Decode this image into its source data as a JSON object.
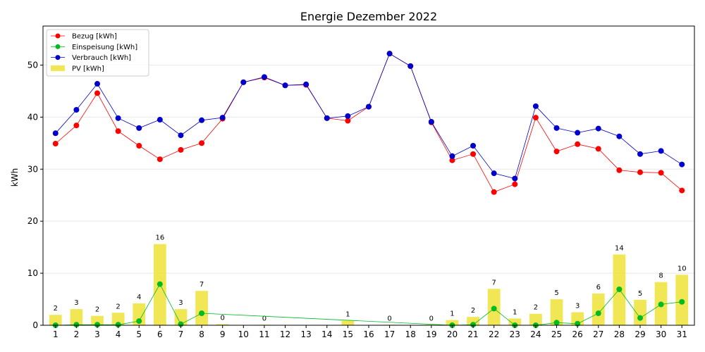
{
  "chart_data": {
    "type": "bar",
    "title": "Energie Dezember 2022",
    "xlabel": "",
    "ylabel": "kWh",
    "ylim": [
      0,
      57.5
    ],
    "xlim": [
      0.4,
      31.6
    ],
    "grid": "horizontal",
    "legend_placement": "top-left",
    "x_ticks": [
      "1",
      "2",
      "3",
      "4",
      "5",
      "6",
      "7",
      "8",
      "9",
      "10",
      "11",
      "12",
      "13",
      "14",
      "15",
      "16",
      "17",
      "18",
      "19",
      "20",
      "21",
      "22",
      "23",
      "24",
      "25",
      "26",
      "27",
      "28",
      "29",
      "30",
      "31"
    ],
    "y_ticks": [
      0,
      10,
      20,
      30,
      40,
      50
    ],
    "pv": {
      "name": "PV [kWh]",
      "color": "#f0e442",
      "x": [
        1,
        2,
        3,
        4,
        5,
        6,
        7,
        8,
        9,
        11,
        15,
        17,
        19,
        20,
        21,
        22,
        23,
        24,
        25,
        26,
        27,
        28,
        29,
        30,
        31
      ],
      "values": [
        2.0,
        3.1,
        1.8,
        2.4,
        4.2,
        15.6,
        3.1,
        6.6,
        0.2,
        0.1,
        0.9,
        0.1,
        0.1,
        1.0,
        1.6,
        7.0,
        1.3,
        2.2,
        5.0,
        2.5,
        6.1,
        13.6,
        4.9,
        8.3,
        9.7
      ],
      "labels": [
        "2",
        "3",
        "2",
        "2",
        "4",
        "16",
        "3",
        "7",
        "0",
        "0",
        "1",
        "0",
        "0",
        "1",
        "2",
        "7",
        "1",
        "2",
        "5",
        "3",
        "6",
        "14",
        "5",
        "8",
        "10"
      ]
    },
    "series": [
      {
        "name": "Bezug [kWh]",
        "color": "#ff0000",
        "x": [
          1,
          2,
          3,
          4,
          5,
          6,
          7,
          8,
          9,
          10,
          11,
          12,
          13,
          14,
          15,
          16,
          17,
          18,
          19,
          20,
          21,
          22,
          23,
          24,
          25,
          26,
          27,
          28,
          29,
          30,
          31
        ],
        "values": [
          34.9,
          38.4,
          44.6,
          37.3,
          34.5,
          31.9,
          33.7,
          35.0,
          39.7,
          46.7,
          47.6,
          46.1,
          46.2,
          39.8,
          39.3,
          42.0,
          52.2,
          49.8,
          39.0,
          31.7,
          32.9,
          25.6,
          27.1,
          39.9,
          33.4,
          34.8,
          33.9,
          29.8,
          29.4,
          29.3,
          25.9
        ]
      },
      {
        "name": "Einspeisung [kWh]",
        "color": "#00bb22",
        "x": [
          1,
          2,
          3,
          4,
          5,
          6,
          7,
          8,
          20,
          21,
          22,
          23,
          24,
          25,
          26,
          27,
          28,
          29,
          30,
          31
        ],
        "values": [
          0.0,
          0.1,
          0.1,
          0.1,
          0.8,
          7.9,
          0.2,
          2.3,
          0.0,
          0.1,
          3.2,
          0.0,
          0.0,
          0.5,
          0.3,
          2.3,
          6.9,
          1.4,
          4.0,
          4.5
        ]
      },
      {
        "name": "Verbrauch [kWh]",
        "color": "#0000cc",
        "x": [
          1,
          2,
          3,
          4,
          5,
          6,
          7,
          8,
          9,
          10,
          11,
          12,
          13,
          14,
          15,
          16,
          17,
          18,
          19,
          20,
          21,
          22,
          23,
          24,
          25,
          26,
          27,
          28,
          29,
          30,
          31
        ],
        "values": [
          36.9,
          41.4,
          46.4,
          39.8,
          37.9,
          39.5,
          36.5,
          39.4,
          39.9,
          46.7,
          47.7,
          46.1,
          46.3,
          39.8,
          40.2,
          42.0,
          52.2,
          49.8,
          39.1,
          32.5,
          34.5,
          29.2,
          28.2,
          42.1,
          37.9,
          37.0,
          37.8,
          36.3,
          32.9,
          33.5,
          30.9
        ]
      }
    ]
  }
}
